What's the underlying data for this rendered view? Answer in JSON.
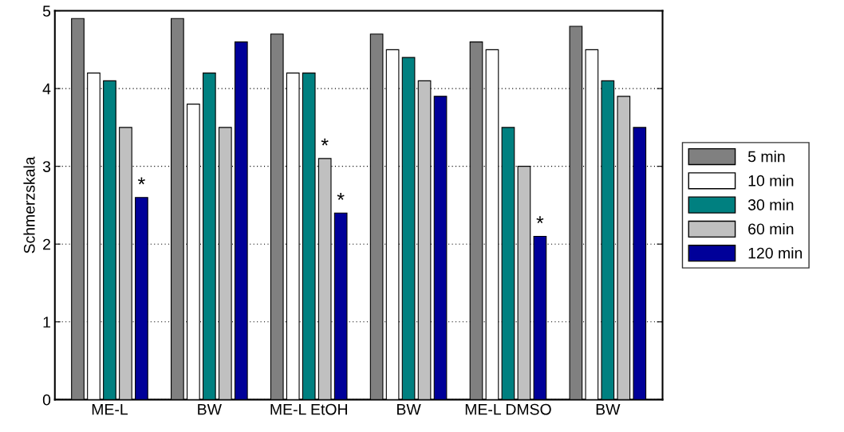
{
  "chart_data": {
    "type": "bar",
    "ylabel": "Schmerzskala",
    "categories": [
      "ME-L",
      "BW",
      "ME-L EtOH",
      "BW",
      "ME-L DMSO",
      "BW"
    ],
    "series": [
      {
        "name": "5 min",
        "color": "#808080",
        "values": [
          4.9,
          4.9,
          4.7,
          4.7,
          4.6,
          4.8
        ]
      },
      {
        "name": "10 min",
        "color": "#ffffff",
        "values": [
          4.2,
          3.8,
          4.2,
          4.5,
          4.5,
          4.5
        ]
      },
      {
        "name": "30 min",
        "color": "#008080",
        "values": [
          4.1,
          4.2,
          4.2,
          4.4,
          3.5,
          4.1
        ]
      },
      {
        "name": "60 min",
        "color": "#c0c0c0",
        "values": [
          3.5,
          3.5,
          3.1,
          4.1,
          3.0,
          3.9
        ],
        "value_labels": [
          null,
          null,
          "*",
          null,
          null,
          null
        ]
      },
      {
        "name": "120 min",
        "color": "#000099",
        "values": [
          2.6,
          4.6,
          2.4,
          3.9,
          2.1,
          3.5
        ],
        "value_labels": [
          "*",
          null,
          "*",
          null,
          "*",
          null
        ]
      }
    ],
    "ylim": [
      0,
      5
    ],
    "yticks": [
      0,
      1,
      2,
      3,
      4,
      5
    ],
    "grid": "y",
    "legend": "right"
  }
}
